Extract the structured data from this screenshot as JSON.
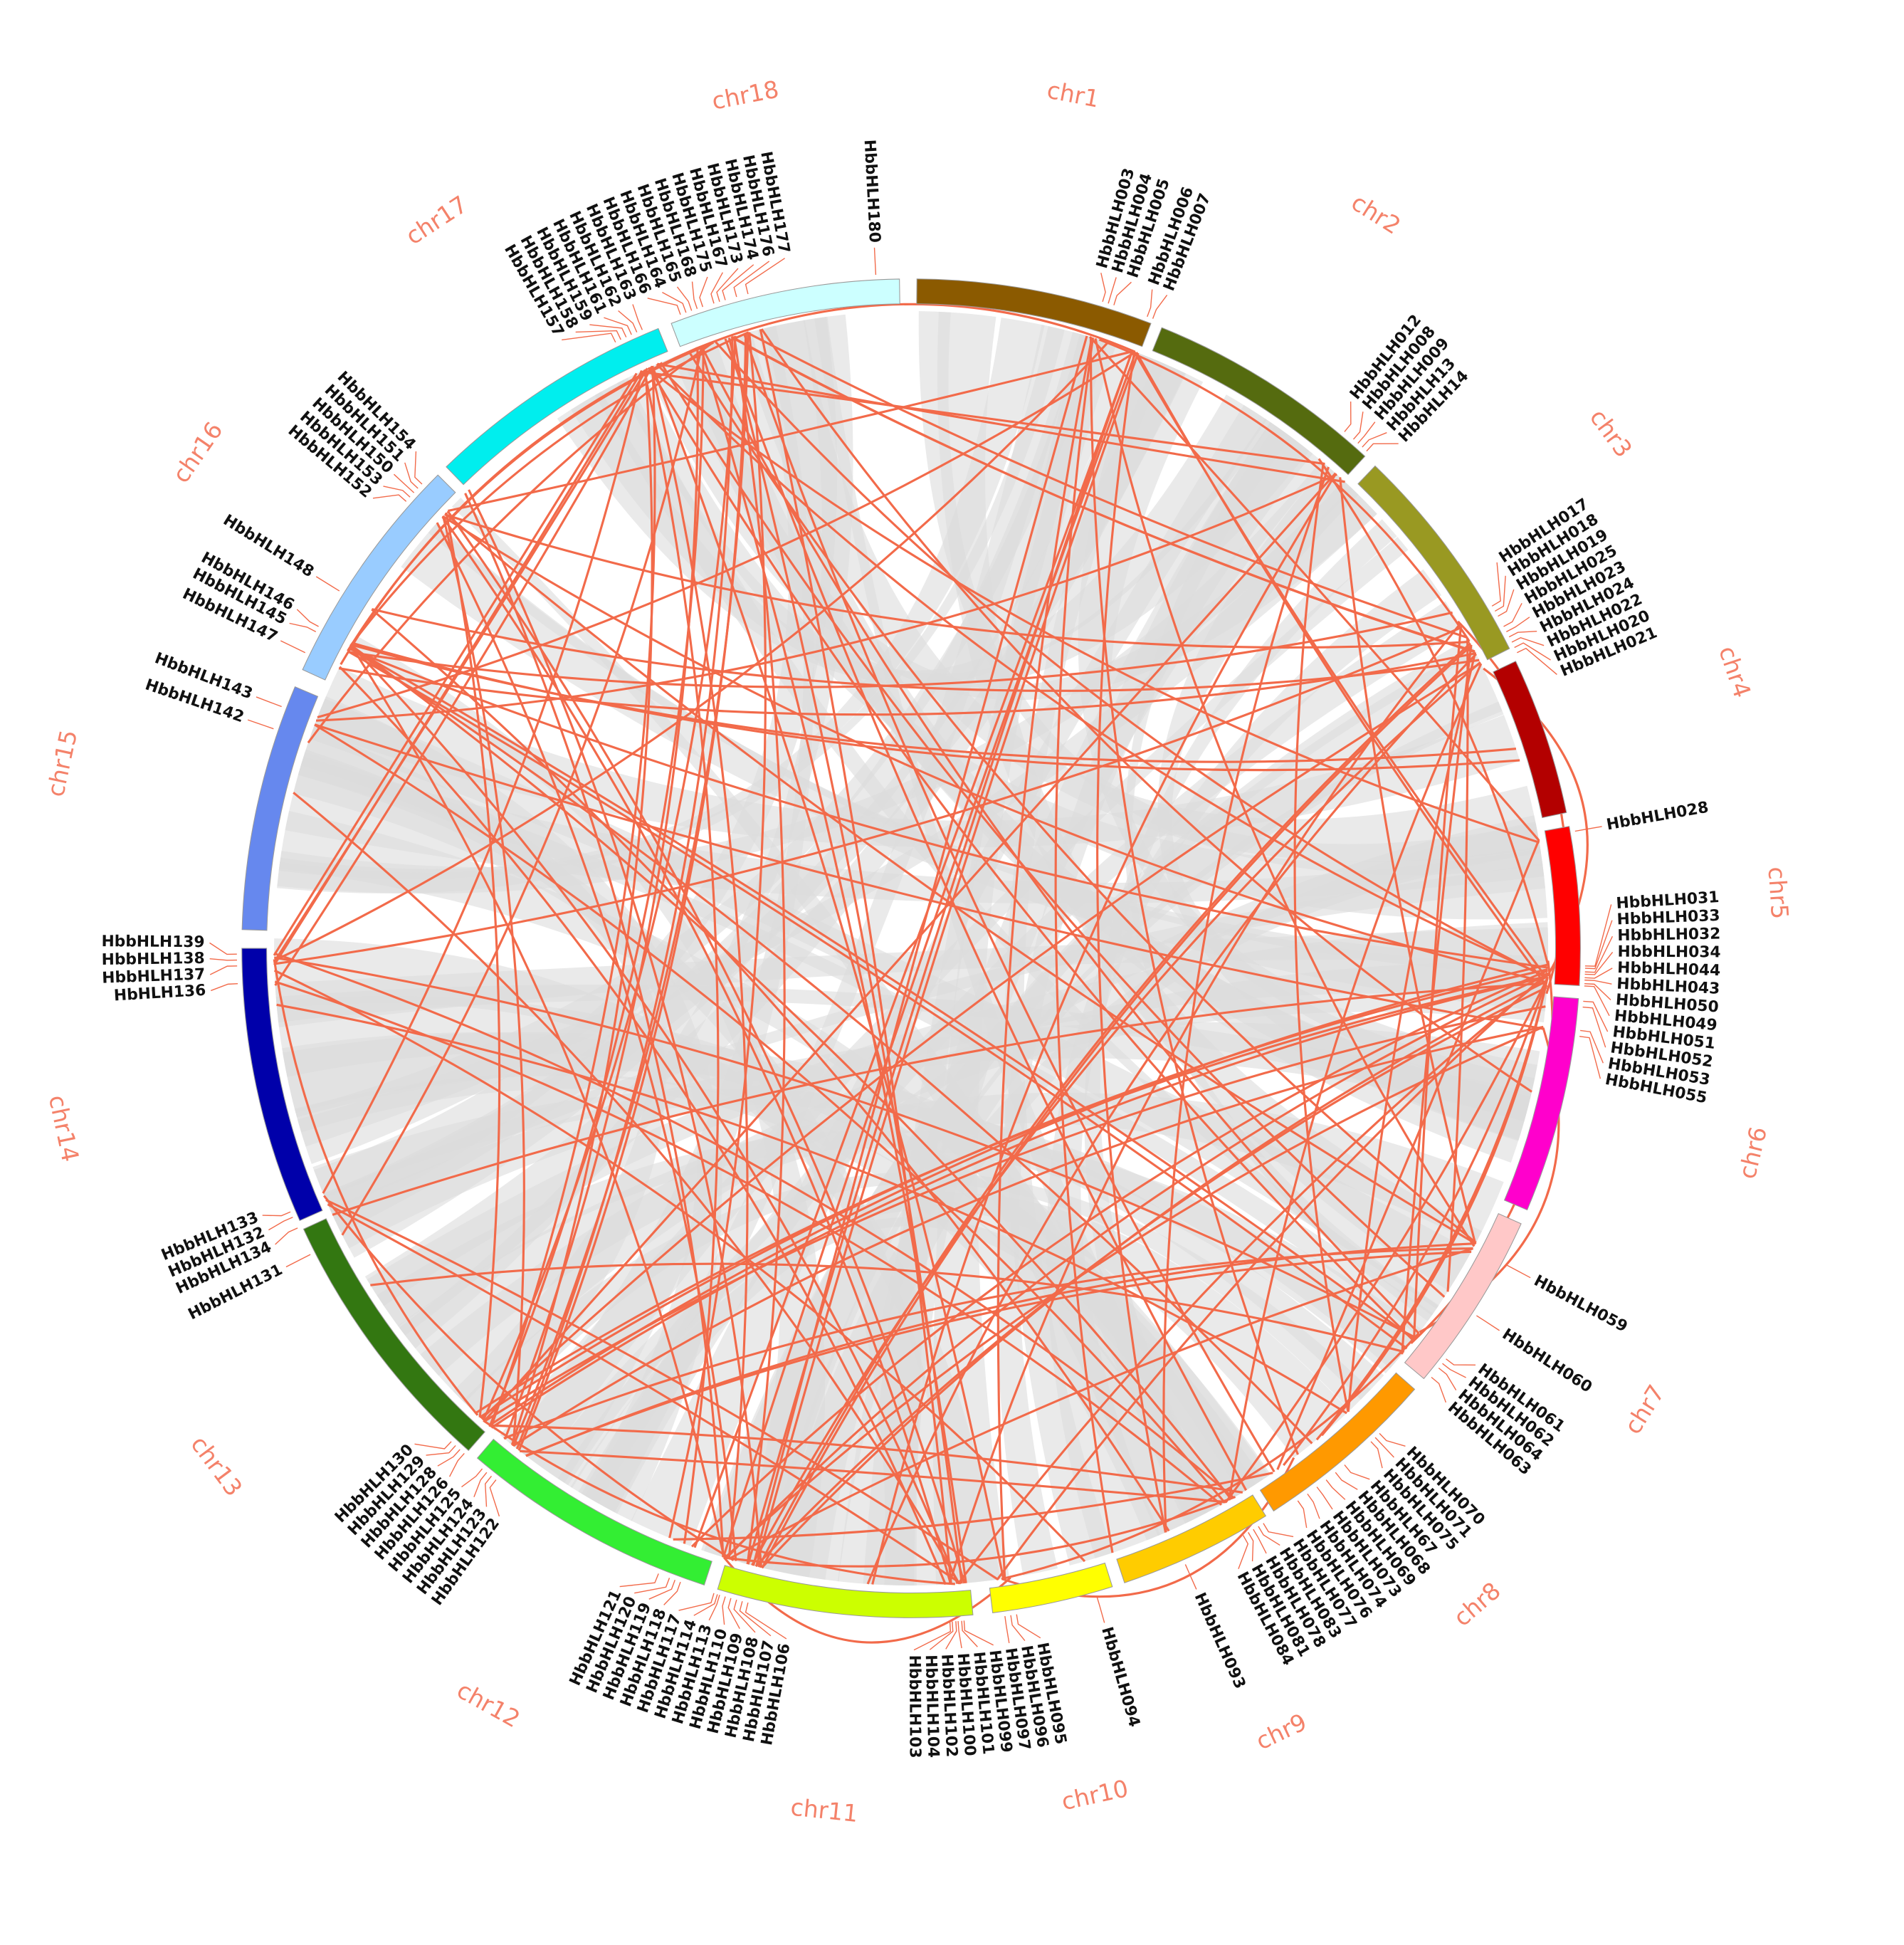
{
  "chromosomes": [
    {
      "name": "chr1",
      "color": "#8b5a00"
    },
    {
      "name": "chr2",
      "color": "#556b0f"
    },
    {
      "name": "chr3",
      "color": "#999922"
    },
    {
      "name": "chr4",
      "color": "#b30000"
    },
    {
      "name": "chr5",
      "color": "#ff0000"
    },
    {
      "name": "chr6",
      "color": "#ff00cc"
    },
    {
      "name": "chr7",
      "color": "#ffc8c8"
    },
    {
      "name": "chr8",
      "color": "#ff9900"
    },
    {
      "name": "chr9",
      "color": "#ffcc00"
    },
    {
      "name": "chr10",
      "color": "#ffff00"
    },
    {
      "name": "chr11",
      "color": "#ccff00"
    },
    {
      "name": "chr12",
      "color": "#33ee33"
    },
    {
      "name": "chr13",
      "color": "#337711"
    },
    {
      "name": "chr14",
      "color": "#0000aa"
    },
    {
      "name": "chr15",
      "color": "#6688ee"
    },
    {
      "name": "chr16",
      "color": "#99ccff"
    },
    {
      "name": "chr17",
      "color": "#00eeee"
    },
    {
      "name": "chr18",
      "color": "#ccffff"
    }
  ],
  "genes": [
    "HbbHLH003",
    "HbbHLH004",
    "HbbHLH005",
    "HbbHLH006",
    "HbbHLH007",
    "HbbHLH012",
    "HbbHLH008",
    "HbbHLH009",
    "HbbHLH13",
    "HbbHLH14",
    "HbbHLH017",
    "HbbHLH018",
    "HbbHLH019",
    "HbbHLH025",
    "HbbHLH023",
    "HbbHLH024",
    "HbbHLH022",
    "HbbHLH020",
    "HbbHLH021",
    "HbbHLH028",
    "HbbHLH031",
    "HbbHLH033",
    "HbbHLH032",
    "HbbHLH034",
    "HbbHLH044",
    "HbbHLH043",
    "HbbHLH050",
    "HbbHLH049",
    "HbbHLH051",
    "HbbHLH052",
    "HbbHLH053",
    "HbbHLH055",
    "HbbHLH059",
    "HbbHLH060",
    "HbbHLH061",
    "HbbHLH062",
    "HbbHLH064",
    "HbbHLH063",
    "HbbHLH070",
    "HbbHLH071",
    "HbbHLH075",
    "HbbHLH67",
    "HbbHLH068",
    "HbbHLH069",
    "HbbHLH073",
    "HbbHLH074",
    "HbbHLH076",
    "HbbHLH077",
    "HbbHLH083",
    "HbbHLH078",
    "HbbHLH081",
    "HbbHLH084",
    "HbbHLH093",
    "HbbHLH094",
    "HbbHLH095",
    "HbbHLH096",
    "HbbHLH097",
    "HbbHLH099",
    "HbbHLH101",
    "HbbHLH100",
    "HbbHLH102",
    "HbbHLH104",
    "HbbHLH103",
    "HbbHLH106",
    "HbbHLH107",
    "HbbHLH108",
    "HbbHLH109",
    "HbbHLH110",
    "HbbHLH113",
    "HbbHLH114",
    "HbbHLH117",
    "HbbHLH118",
    "HbbHLH119",
    "HbbHLH120",
    "HbbHLH121",
    "HbbHLH122",
    "HbbHLH123",
    "HbbHLH124",
    "HbbHLH125",
    "HbbHLH126",
    "HbbHLH128",
    "HbbHLH129",
    "HbbHLH130",
    "HbbHLH131",
    "HbbHLH134",
    "HbbHLH132",
    "HbbHLH133",
    "HbHLH136",
    "HbbHLH137",
    "HbbHLH138",
    "HbbHLH139",
    "HbbHLH142",
    "HbbHLH143",
    "HbbHLH147",
    "HbbHLH145",
    "HbbHLH146",
    "HbbHLH148",
    "HbbHLH152",
    "HbbHLH153",
    "HbbHLH150",
    "HbbHLH151",
    "HbbHLH154",
    "HbbHLH157",
    "HbbHLH158",
    "HbbHLH159",
    "HbbHLH161",
    "HbbHLH162",
    "HbbHLH163",
    "HbbHLH166",
    "HbbHLH164",
    "HbbHLH165",
    "HbbHLH168",
    "HbbHLH175",
    "HbbHLH167",
    "HbbHLH173",
    "HbbHLH174",
    "HbbHLH176",
    "HbbHLH177",
    "HbbHLH180"
  ]
}
